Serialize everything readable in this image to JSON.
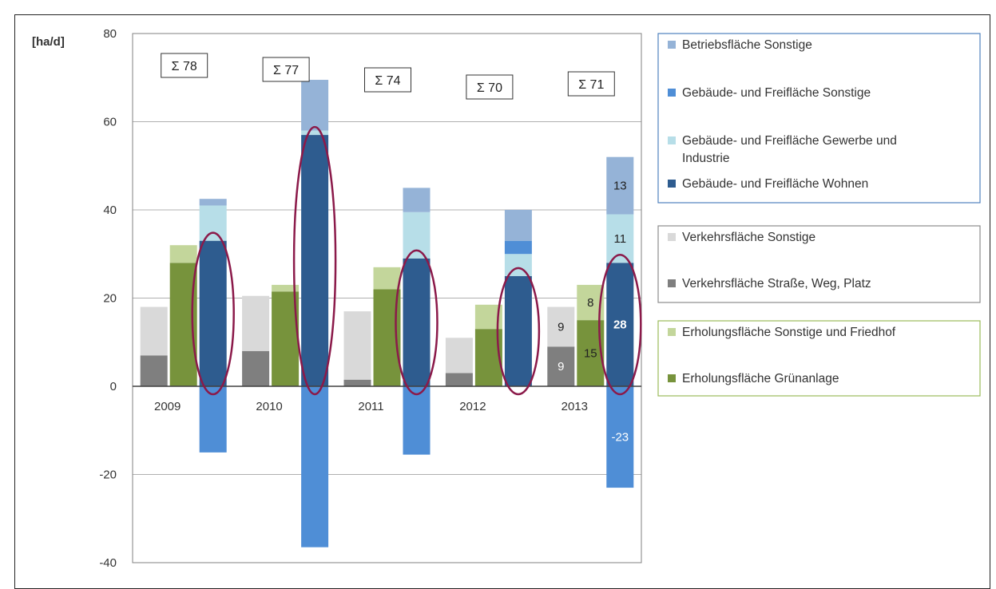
{
  "chart_data": {
    "type": "bar",
    "ylabel": "[ha/d]",
    "ylim": [
      -40,
      80
    ],
    "yticks": [
      "80",
      "60",
      "40",
      "20",
      "0",
      "-20",
      "-40"
    ],
    "categories": [
      "2009",
      "2010",
      "2011",
      "2012",
      "2013"
    ],
    "totals": [
      "Σ 78",
      "Σ 77",
      "Σ 74",
      "Σ 70",
      "Σ 71"
    ],
    "grid": true,
    "groups": [
      {
        "name": "Verkehr",
        "series": [
          {
            "name": "Verkehrsfläche Straße, Weg, Platz",
            "color": "#7f7f7f",
            "values": [
              7,
              8,
              1.5,
              3,
              9
            ]
          },
          {
            "name": "Verkehrsfläche Sonstige",
            "color": "#d9d9d9",
            "values": [
              11,
              12.5,
              15.5,
              8,
              9
            ]
          }
        ]
      },
      {
        "name": "Erholung",
        "series": [
          {
            "name": "Erholungsfläche Grünanlage",
            "color": "#77933c",
            "values": [
              28,
              21.5,
              22,
              13,
              15
            ]
          },
          {
            "name": "Erholungsfläche Sonstige und Friedhof",
            "color": "#c3d69b",
            "values": [
              4,
              1.5,
              5,
              5.5,
              8
            ]
          }
        ]
      },
      {
        "name": "Gebäude",
        "series": [
          {
            "name": "Gebäude- und Freifläche Wohnen",
            "color": "#2e5c8f",
            "values": [
              33,
              57,
              29,
              25,
              28
            ]
          },
          {
            "name": "Gebäude- und Freifläche Gewerbe und Industrie",
            "color": "#b7dee8",
            "values": [
              8,
              1,
              10.5,
              5,
              11
            ]
          },
          {
            "name": "Gebäude- und Freifläche Sonstige",
            "color": "#4f8ed6",
            "values": [
              -15,
              -36.5,
              -15.5,
              3,
              -23
            ]
          },
          {
            "name": "Betriebsfläche Sonstige",
            "color": "#95b3d7",
            "values": [
              1.5,
              11.5,
              5.5,
              7,
              13
            ]
          }
        ]
      }
    ],
    "data_labels": [
      {
        "category": "2013",
        "series": "Verkehrsfläche Straße, Weg, Platz",
        "text": "9"
      },
      {
        "category": "2013",
        "series": "Verkehrsfläche Sonstige",
        "text": "9"
      },
      {
        "category": "2013",
        "series": "Erholungsfläche Grünanlage",
        "text": "15"
      },
      {
        "category": "2013",
        "series": "Erholungsfläche Sonstige und Friedhof",
        "text": "8"
      },
      {
        "category": "2013",
        "series": "Gebäude- und Freifläche Wohnen",
        "text": "28"
      },
      {
        "category": "2013",
        "series": "Gebäude- und Freifläche Gewerbe und Industrie",
        "text": "11"
      },
      {
        "category": "2013",
        "series": "Betriebsfläche Sonstige",
        "text": "13"
      },
      {
        "category": "2013",
        "series": "Gebäude- und Freifläche Sonstige",
        "text": "-23"
      }
    ],
    "highlighted_series": "Gebäude- und Freifläche Wohnen",
    "highlight_color": "#8b1a4a"
  },
  "legend": {
    "boxes": [
      {
        "border": "#4f81bd",
        "items": [
          {
            "label": "Betriebsfläche Sonstige",
            "color": "#95b3d7"
          },
          {
            "label": "Gebäude- und Freifläche Sonstige",
            "color": "#4f8ed6"
          },
          {
            "label": "Gebäude- und Freifläche Gewerbe und Industrie",
            "color": "#b7dee8"
          },
          {
            "label": "Gebäude- und Freifläche Wohnen",
            "color": "#2e5c8f"
          }
        ]
      },
      {
        "border": "#8c8c8c",
        "items": [
          {
            "label": "Verkehrsfläche Sonstige",
            "color": "#d9d9d9"
          },
          {
            "label": "Verkehrsfläche Straße, Weg, Platz",
            "color": "#7f7f7f"
          }
        ]
      },
      {
        "border": "#9bbb59",
        "items": [
          {
            "label": "Erholungsfläche Sonstige und Friedhof",
            "color": "#c3d69b"
          },
          {
            "label": "Erholungsfläche Grünanlage",
            "color": "#77933c"
          }
        ]
      }
    ]
  }
}
